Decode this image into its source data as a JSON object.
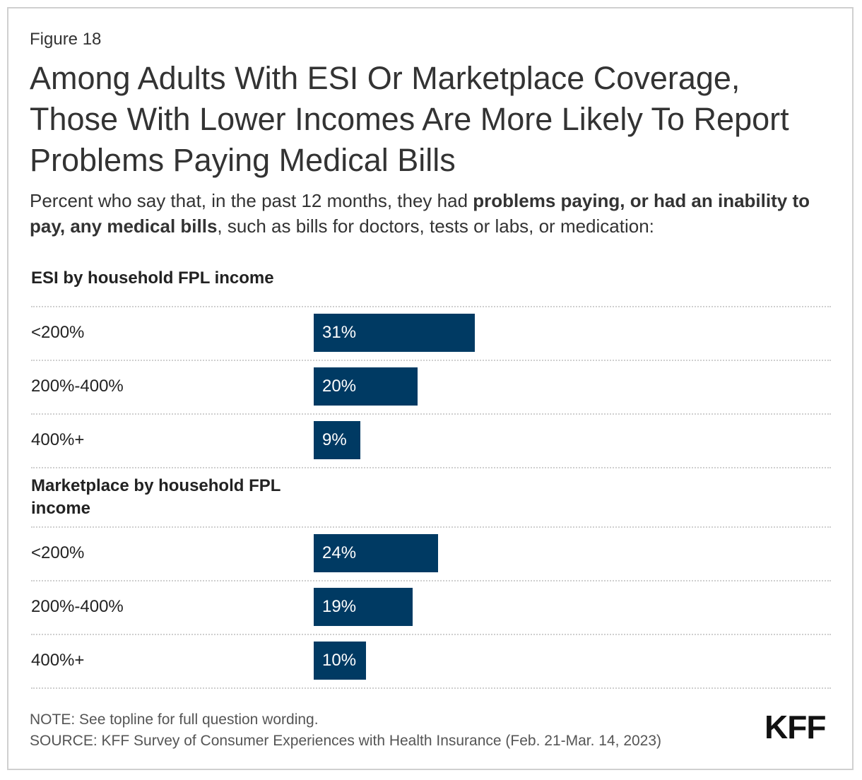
{
  "figure_label": "Figure 18",
  "title": "Among Adults With ESI Or Marketplace Coverage, Those With Lower Incomes Are More Likely To Report Problems Paying Medical Bills",
  "subtitle": {
    "part1": "Percent who say that, in the past 12 months, they had ",
    "bold": "problems paying, or had an inability to pay, any medical bills",
    "part2": ", such as bills for doctors, tests or labs, or medication:"
  },
  "chart_data": {
    "type": "bar",
    "orientation": "horizontal",
    "unit": "%",
    "xlim": [
      0,
      100
    ],
    "grid": false,
    "bar_color": "#003a63",
    "groups": [
      {
        "name": "ESI by household FPL income",
        "categories": [
          "<200%",
          "200%-400%",
          "400%+"
        ],
        "values": [
          31,
          20,
          9
        ],
        "labels": [
          "31%",
          "20%",
          "9%"
        ]
      },
      {
        "name": "Marketplace by household FPL income",
        "categories": [
          "<200%",
          "200%-400%",
          "400%+"
        ],
        "values": [
          24,
          19,
          10
        ],
        "labels": [
          "24%",
          "19%",
          "10%"
        ]
      }
    ]
  },
  "note": "NOTE: See topline for full question wording.",
  "source": "SOURCE: KFF Survey of Consumer Experiences with Health Insurance (Feb. 21-Mar. 14, 2023)",
  "logo_text": "KFF"
}
